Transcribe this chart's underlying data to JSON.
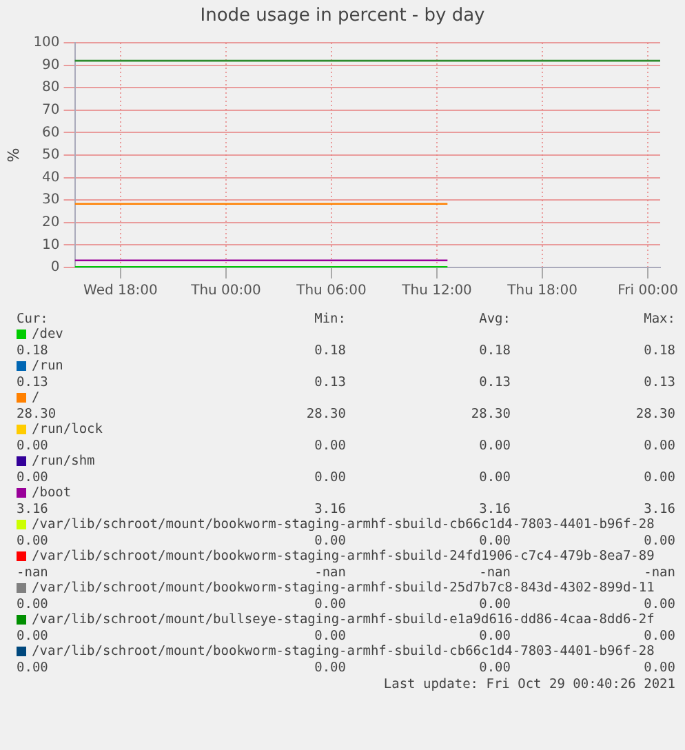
{
  "chart_data": {
    "type": "line",
    "title": "Inode usage in percent - by day",
    "ylabel": "%",
    "x": [
      "--10-27T15:24",
      "--10-28T12:36"
    ],
    "xlim": [
      "--10-27T15:24",
      "--10-29T00:42"
    ],
    "xticks": [
      {
        "value": "--10-27T18:00",
        "label": "Wed 18:00"
      },
      {
        "value": "--10-28T00:00",
        "label": "Thu 00:00"
      },
      {
        "value": "--10-28T06:00",
        "label": "Thu 06:00"
      },
      {
        "value": "--10-28T12:00",
        "label": "Thu 12:00"
      },
      {
        "value": "--10-28T18:00",
        "label": "Thu 18:00"
      },
      {
        "value": "--10-29T00:00",
        "label": "Fri 00:00"
      }
    ],
    "ylim": [
      0,
      100
    ],
    "yticks": [
      0,
      10,
      20,
      30,
      40,
      50,
      60,
      70,
      80,
      90,
      100
    ],
    "grid": true,
    "legend": "bottom",
    "marker": "none",
    "line_style": "solid",
    "ref_lines": [
      {
        "axis": "y",
        "value": 92,
        "color": "#2e8b2e"
      }
    ],
    "annotations": [
      "Cur:",
      "Min:",
      "Avg:",
      "Max:",
      "0.18",
      "0.18",
      "0.18",
      "0.18",
      "0.13",
      "0.13",
      "0.13",
      "0.13",
      "28.30",
      "28.30",
      "28.30",
      "28.30",
      "0.00",
      "0.00",
      "0.00",
      "0.00",
      "0.00",
      "0.00",
      "0.00",
      "0.00",
      "3.16",
      "3.16",
      "3.16",
      "3.16",
      "0.00",
      "0.00",
      "0.00",
      "0.00",
      "-nan",
      "-nan",
      "-nan",
      "-nan",
      "0.00",
      "0.00",
      "0.00",
      "0.00",
      "0.00",
      "0.00",
      "0.00",
      "0.00",
      "0.00",
      "0.00",
      "0.00",
      "0.00",
      "Last update: Fri Oct 29 00:40:26 2021"
    ],
    "series": [
      {
        "name": "/dev",
        "color": "#00cc00",
        "values": [
          0.18,
          0.18
        ]
      },
      {
        "name": "/run",
        "color": "#0066b3",
        "values": [
          null,
          null
        ]
      },
      {
        "name": "/",
        "color": "#ff8000",
        "values": [
          28.3,
          28.3
        ]
      },
      {
        "name": "/run/lock",
        "color": "#ffcc00",
        "values": [
          null,
          null
        ]
      },
      {
        "name": "/run/shm",
        "color": "#330099",
        "values": [
          null,
          null
        ]
      },
      {
        "name": "/boot",
        "color": "#990099",
        "values": [
          3.16,
          3.16
        ]
      },
      {
        "name": "/var/lib/schroot/mount/bookworm-staging-armhf-sbuild-cb66c1d4-7803-4401-b96f-28",
        "color": "#ccff00",
        "values": [
          null,
          null
        ]
      },
      {
        "name": "/var/lib/schroot/mount/bookworm-staging-armhf-sbuild-24fd1906-c7c4-479b-8ea7-89",
        "color": "#ff0000",
        "values": [
          null,
          null
        ]
      },
      {
        "name": "/var/lib/schroot/mount/bookworm-staging-armhf-sbuild-25d7b7c8-843d-4302-899d-11",
        "color": "#808080",
        "values": [
          null,
          null
        ]
      },
      {
        "name": "/var/lib/schroot/mount/bullseye-staging-armhf-sbuild-e1a9d616-dd86-4caa-8dd6-2f",
        "color": "#008f00",
        "values": [
          null,
          null
        ]
      },
      {
        "name": "/var/lib/schroot/mount/bookworm-staging-armhf-sbuild-cb66c1d4-7803-4401-b96f-28",
        "color": "#00487d",
        "values": [
          null,
          null
        ]
      }
    ]
  }
}
